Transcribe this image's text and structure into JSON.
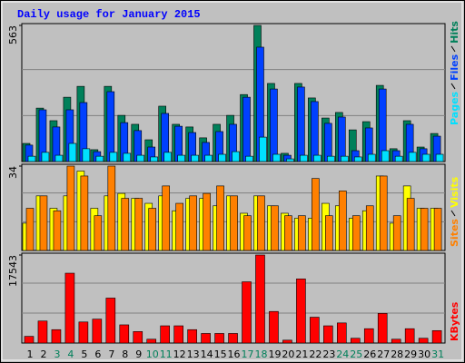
{
  "chart_data": [
    {
      "type": "bar",
      "title": "Daily usage for January 2015",
      "ylim": [
        0,
        563
      ],
      "yticks": [
        563
      ],
      "series": [
        {
          "name": "Hits",
          "color": "#00805a",
          "values": [
            75,
            221,
            169,
            266,
            311,
            49,
            311,
            191,
            154,
            90,
            229,
            154,
            143,
            98,
            154,
            191,
            277,
            563,
            323,
            34,
            323,
            263,
            180,
            203,
            131,
            165,
            315,
            53,
            169,
            60,
            116
          ]
        },
        {
          "name": "Files",
          "color": "#0040ff",
          "values": [
            68,
            214,
            143,
            214,
            244,
            41,
            289,
            161,
            128,
            60,
            199,
            146,
            120,
            79,
            124,
            154,
            266,
            473,
            300,
            26,
            308,
            248,
            158,
            184,
            45,
            139,
            300,
            45,
            154,
            53,
            105
          ]
        },
        {
          "name": "Pages",
          "color": "#00e0ff",
          "values": [
            22,
            38,
            26,
            75,
            53,
            22,
            38,
            34,
            26,
            19,
            38,
            26,
            26,
            26,
            30,
            41,
            22,
            101,
            30,
            11,
            26,
            26,
            22,
            22,
            19,
            30,
            45,
            22,
            38,
            30,
            30
          ]
        }
      ]
    },
    {
      "type": "bar",
      "ylim": [
        0,
        34
      ],
      "yticks": [
        34
      ],
      "series": [
        {
          "name": "Visits",
          "color": "#ffff00",
          "values": [
            11,
            22,
            17,
            22,
            32,
            17,
            22,
            23,
            21,
            19,
            22,
            16,
            21,
            21,
            18,
            22,
            15,
            22,
            18,
            15,
            13,
            13,
            19,
            18,
            13,
            16,
            30,
            11,
            26,
            17,
            17
          ]
        },
        {
          "name": "Sites",
          "color": "#ff8000",
          "values": [
            17,
            22,
            16,
            34,
            30,
            14,
            34,
            21,
            21,
            17,
            26,
            19,
            22,
            23,
            26,
            22,
            14,
            22,
            18,
            14,
            14,
            29,
            14,
            24,
            14,
            18,
            30,
            14,
            21,
            17,
            17
          ]
        }
      ]
    },
    {
      "type": "bar",
      "ylim": [
        0,
        17543
      ],
      "yticks": [
        17543
      ],
      "categories": [
        "1",
        "2",
        "3",
        "4",
        "5",
        "6",
        "7",
        "8",
        "9",
        "10",
        "11",
        "12",
        "13",
        "14",
        "15",
        "16",
        "17",
        "18",
        "19",
        "20",
        "21",
        "22",
        "23",
        "24",
        "25",
        "26",
        "27",
        "28",
        "29",
        "30",
        "31"
      ],
      "category_colors": [
        "#000000",
        "#000000",
        "#00805a",
        "#00805a",
        "#000000",
        "#000000",
        "#000000",
        "#000000",
        "#000000",
        "#00805a",
        "#00805a",
        "#000000",
        "#000000",
        "#000000",
        "#000000",
        "#000000",
        "#00805a",
        "#00805a",
        "#000000",
        "#000000",
        "#000000",
        "#000000",
        "#000000",
        "#00805a",
        "#00805a",
        "#000000",
        "#000000",
        "#000000",
        "#000000",
        "#000000",
        "#00805a"
      ],
      "series": [
        {
          "name": "KBytes",
          "color": "#ff0000",
          "values": [
            1335,
            4386,
            2670,
            13920,
            4195,
            4767,
            8962,
            3623,
            2288,
            763,
            3432,
            3432,
            2670,
            1907,
            1907,
            1907,
            12204,
            17543,
            6293,
            572,
            12776,
            5149,
            3432,
            4004,
            953,
            2860,
            5911,
            763,
            2860,
            953,
            2479
          ]
        }
      ]
    }
  ]
}
